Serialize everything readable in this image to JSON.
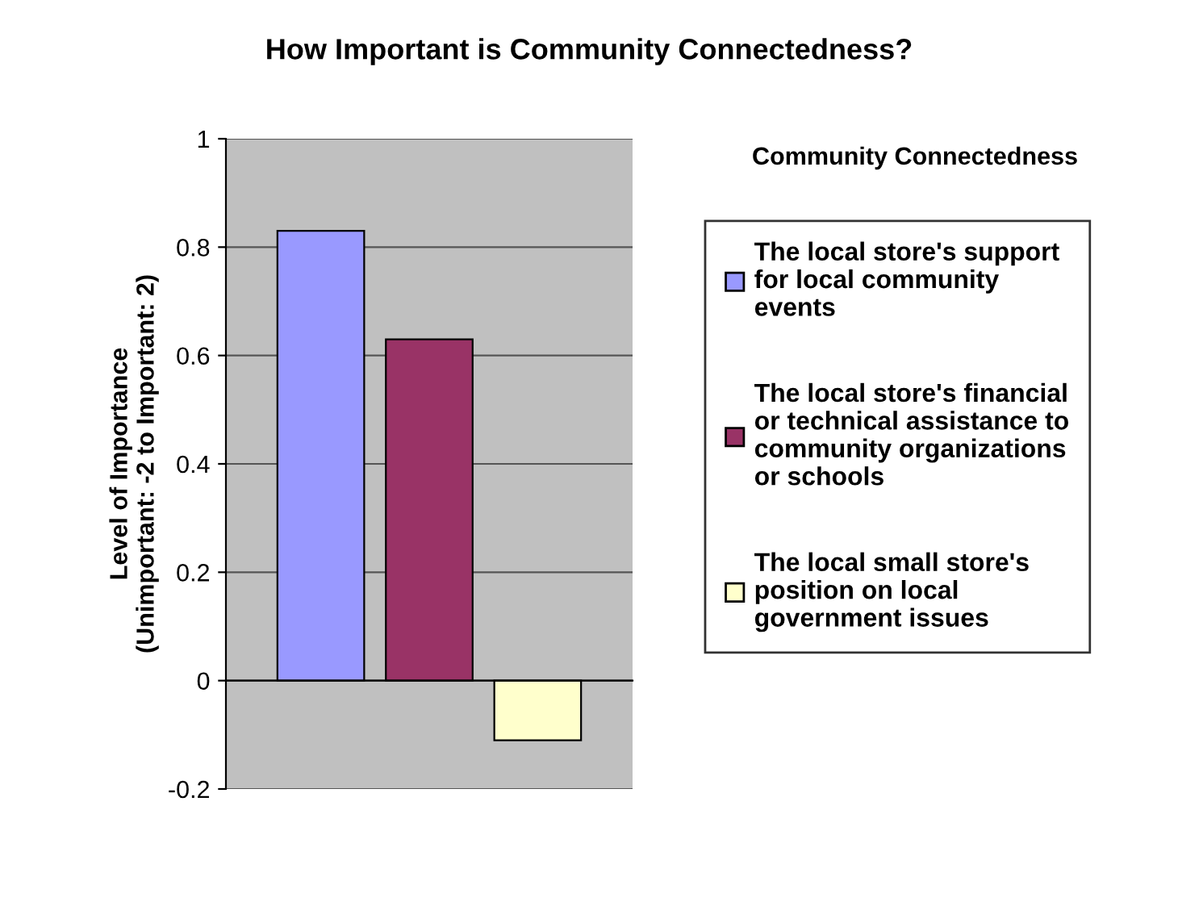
{
  "chart_data": {
    "type": "bar",
    "title": "How Important is Community Connectedness?",
    "ylabel": "Level of Importance\n(Unimportant: -2 to Important: 2)",
    "legend_title": "Community Connectedness",
    "categories": [
      null
    ],
    "series": [
      {
        "name": "The local store's support\nfor local community\nevents",
        "color": "#9999ff",
        "values": [
          0.83
        ]
      },
      {
        "name": "The local store's financial\nor technical assistance to\ncommunity organizations\nor schools",
        "color": "#993366",
        "values": [
          0.63
        ]
      },
      {
        "name": "The local small store's\nposition on local\ngovernment issues",
        "color": "#ffffcc",
        "values": [
          -0.11
        ]
      }
    ],
    "ylim": [
      -0.2,
      1
    ],
    "yticks": [
      -0.2,
      0,
      0.2,
      0.4,
      0.6,
      0.8,
      1
    ],
    "grid": "y",
    "legend": "right"
  }
}
